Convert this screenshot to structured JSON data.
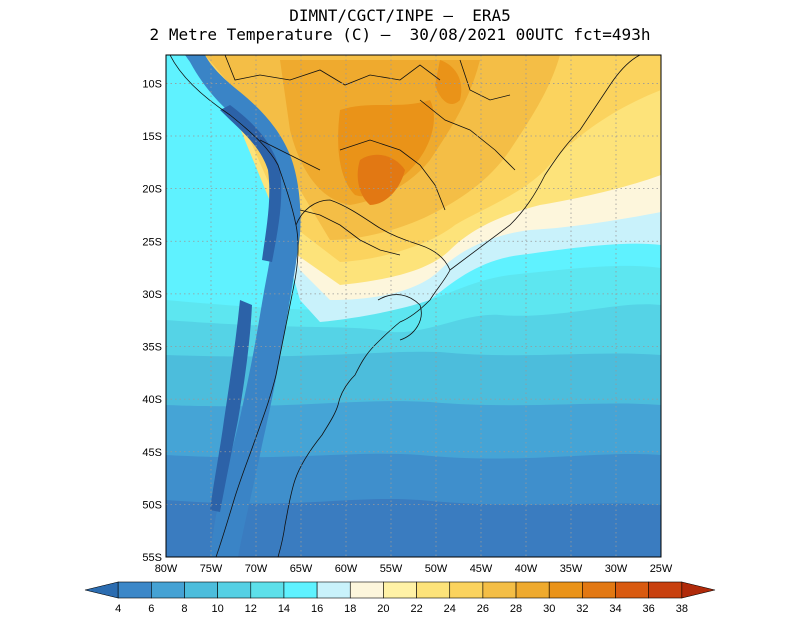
{
  "header": {
    "line1": "DIMNT/CGCT/INPE –  ERA5",
    "line2": "2 Metre Temperature (C) –  30/08/2021 00UTC fct=493h"
  },
  "axes": {
    "lat_labels": [
      "10S",
      "15S",
      "20S",
      "25S",
      "30S",
      "35S",
      "40S",
      "45S",
      "50S",
      "55S"
    ],
    "lon_labels": [
      "80W",
      "75W",
      "70W",
      "65W",
      "60W",
      "55W",
      "50W",
      "45W",
      "40W",
      "35W",
      "30W",
      "25W"
    ],
    "lat_values": [
      -10,
      -15,
      -20,
      -25,
      -30,
      -35,
      -40,
      -45,
      -50,
      -55
    ],
    "lon_values": [
      -80,
      -75,
      -70,
      -65,
      -60,
      -55,
      -50,
      -45,
      -40,
      -35,
      -30,
      -25
    ],
    "lat_range": [
      -55,
      -7.3
    ],
    "lon_range": [
      -80,
      -25
    ]
  },
  "colorbar": {
    "labels": [
      "4",
      "6",
      "8",
      "10",
      "12",
      "14",
      "16",
      "18",
      "20",
      "22",
      "24",
      "26",
      "28",
      "30",
      "32",
      "34",
      "36",
      "38"
    ],
    "colors": [
      "#2b6cb0",
      "#3b87c8",
      "#45a2d4",
      "#4cbddc",
      "#55d0e4",
      "#5de0ea",
      "#5ff2ff",
      "#c9f2fb",
      "#fdf6dc",
      "#fff2a6",
      "#fde37a",
      "#fbd35e",
      "#f4be46",
      "#efaa2e",
      "#ea9318",
      "#e27813",
      "#d95a10",
      "#c8400e",
      "#b02a0a"
    ]
  },
  "colors": {
    "ocean_deep": "#3471b8",
    "ocean_mid": "#49a8d8",
    "ocean_light": "#5ed6e6",
    "cyan": "#5ff2ff",
    "warm": "#f2b83a",
    "hot": "#e07a18"
  }
}
